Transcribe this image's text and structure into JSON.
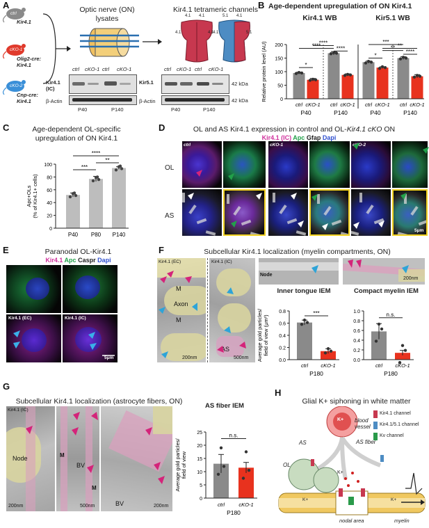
{
  "panels": {
    "A": "A",
    "B": "B",
    "C": "C",
    "D": "D",
    "E": "E",
    "F": "F",
    "G": "G",
    "H": "H"
  },
  "panelA": {
    "mice": [
      {
        "label": "ctrl",
        "genotype": "Kir4.1fl/fl",
        "color": "#8a8a8a"
      },
      {
        "label": "cKO-1",
        "genotype": "Olig2-cre; Kir4.1fl/fl",
        "color": "#e03a2c"
      },
      {
        "label": "cKO-2",
        "genotype": "Cnp-cre; Kir4.1fl/fl",
        "color": "#3a8fd8"
      }
    ],
    "genotypes": [
      "Kir4.1",
      "Olig2-cre:",
      "Kir4.1",
      "Cnp-cre:",
      "Kir4.1"
    ],
    "on_title_1": "Optic nerve (ON)",
    "on_title_2": "lysates",
    "channels_title": "Kir4.1 tetrameric channels",
    "channel_labels": [
      "4.1",
      "4.1",
      "4.1",
      "4.1",
      "5.1",
      "4.1",
      "4.1",
      "5.1"
    ],
    "blot1": {
      "rows": [
        "Kir4.1",
        "(IC)",
        "β-Actin"
      ],
      "lanes": [
        "ctrl",
        "cKO-1",
        "ctrl",
        "cKO-1"
      ],
      "ages": [
        "P40",
        "P140"
      ]
    },
    "blot2": {
      "rows": [
        "Kir5.1",
        "β-Actin"
      ],
      "lanes": [
        "ctrl",
        "cKO-1",
        "ctrl",
        "cKO-1"
      ],
      "ages": [
        "P40",
        "P140"
      ]
    },
    "kda": [
      "42 kDa",
      "42 kDa"
    ]
  },
  "panelB": {
    "title": "Age-dependent upregulation of ON Kir4.1",
    "sub1": "Kir4.1 WB",
    "sub2": "Kir5.1 WB",
    "ylabel": "Relative protein level (AU)",
    "ticks": [
      "0",
      "50",
      "100",
      "150",
      "200"
    ],
    "xlabels": [
      "ctrl",
      "cKO-1",
      "ctrl",
      "cKO-1",
      "ctrl",
      "cKO-1",
      "ctrl",
      "cKO-1"
    ],
    "ages": [
      "P40",
      "P140",
      "P40",
      "P140"
    ],
    "sig": [
      "*",
      "****",
      "****",
      "****",
      "*",
      "***",
      "**",
      "**",
      "****"
    ]
  },
  "panelC": {
    "title1": "Age-dependent OL-specific",
    "title2": "upregulation of ON Kir4.1",
    "ylabel1": "Apc+OLs",
    "ylabel2": "(% of Kir4.1+ cells)",
    "ticks": [
      "0",
      "20",
      "40",
      "60",
      "80",
      "100"
    ],
    "xlabels": [
      "P40",
      "P80",
      "P140"
    ],
    "sig": [
      "****",
      "***",
      "**"
    ]
  },
  "panelD": {
    "title_a": "OL and AS Kir4.1 expression in control and OL-",
    "title_b": "Kir4.1 cKO",
    "title_c": " ON",
    "legend": [
      "Kir4.1 (IC)",
      "Apc",
      "Gfap",
      "Dapi"
    ],
    "rows": [
      "OL",
      "AS"
    ],
    "cols": [
      "ctrl",
      "cKO-1",
      "cKO-2"
    ],
    "scale": "5μm"
  },
  "panelE": {
    "title": "Paranodal OL-Kir4.1",
    "legend": [
      "Kir4.1",
      "Apc",
      "Caspr",
      "Dapi"
    ],
    "tags": [
      "Kir4.1 (EC)",
      "Kir4.1 (IC)"
    ],
    "scale": "5μm"
  },
  "panelF": {
    "title": "Subcellular Kir4.1 localization (myelin compartments, ON)",
    "em_tags": [
      "Kir4.1 (EC)",
      "Kir4.1 (IC)"
    ],
    "em_labels": [
      "M",
      "Axon",
      "M",
      "AS",
      "Node"
    ],
    "scales": [
      "200nm",
      "500nm",
      "200nm"
    ],
    "chart1_title": "Inner tongue IEM",
    "chart2_title": "Compact myelin IEM",
    "ylabel1": "Average gold particles/",
    "ylabel2": "field of view (μm²)",
    "ticks1": [
      "0.0",
      "0.2",
      "0.4",
      "0.6",
      "0.8"
    ],
    "ticks2": [
      "0.0",
      "0.2",
      "0.4",
      "0.6",
      "0.8",
      "1.0"
    ],
    "xlabels": [
      "ctrl",
      "cKO-1"
    ],
    "age": "P180",
    "sig1": "***",
    "sig2": "n.s."
  },
  "panelG": {
    "title": "Subcellular Kir4.1 localization (astrocyte fibers, ON)",
    "em_tag": "Kir4.1 (IC)",
    "em_labels": [
      "Node",
      "M",
      "BV",
      "M",
      "BV"
    ],
    "scales": [
      "200nm",
      "500nm",
      "200nm"
    ],
    "chart_title": "AS fiber IEM",
    "ylabel1": "Average gold particles/",
    "ylabel2": "field of view",
    "ticks": [
      "0",
      "5",
      "10",
      "15",
      "20",
      "25"
    ],
    "xlabels": [
      "ctrl",
      "cKO-1"
    ],
    "age": "P180",
    "sig": "n.s."
  },
  "panelH": {
    "title": "Glial K+ siphoning in white matter",
    "labels": [
      "blood",
      "vessel",
      "AS",
      "AS fiber",
      "OL",
      "K+",
      "K+",
      "K+",
      "K+",
      "nodal area",
      "myelin"
    ],
    "legend": [
      "Kir4.1 channel",
      "Kir4.1/5.1 channel",
      "Kv channel"
    ]
  },
  "chart_data": [
    {
      "type": "bar",
      "title": "Kir4.1 WB",
      "categories": [
        "P40 ctrl",
        "P40 cKO-1",
        "P140 ctrl",
        "P140 cKO-1"
      ],
      "values": [
        95,
        70,
        168,
        88
      ],
      "ylabel": "Relative protein level (AU)",
      "ylim": [
        0,
        200
      ],
      "colors": [
        "#8a8a8a",
        "#e8321e",
        "#8a8a8a",
        "#e8321e"
      ]
    },
    {
      "type": "bar",
      "title": "Kir5.1 WB",
      "categories": [
        "P40 ctrl",
        "P40 cKO-1",
        "P140 ctrl",
        "P140 cKO-1"
      ],
      "values": [
        135,
        115,
        150,
        83
      ],
      "ylabel": "Relative protein level (AU)",
      "ylim": [
        0,
        200
      ],
      "colors": [
        "#8a8a8a",
        "#e8321e",
        "#8a8a8a",
        "#e8321e"
      ]
    },
    {
      "type": "bar",
      "categories": [
        "P40",
        "P80",
        "P140"
      ],
      "values": [
        52,
        77,
        94
      ],
      "ylabel": "Apc+OLs (% of Kir4.1+ cells)",
      "ylim": [
        0,
        100
      ]
    },
    {
      "type": "bar",
      "title": "Inner tongue IEM",
      "categories": [
        "ctrl",
        "cKO-1"
      ],
      "values": [
        0.61,
        0.14
      ],
      "ylim": [
        0,
        0.8
      ]
    },
    {
      "type": "bar",
      "title": "Compact myelin IEM",
      "categories": [
        "ctrl",
        "cKO-1"
      ],
      "values": [
        0.58,
        0.14
      ],
      "ylim": [
        0,
        1.0
      ]
    },
    {
      "type": "bar",
      "title": "AS fiber IEM",
      "categories": [
        "ctrl",
        "cKO-1"
      ],
      "values": [
        13,
        11.5
      ],
      "ylim": [
        0,
        25
      ]
    }
  ]
}
